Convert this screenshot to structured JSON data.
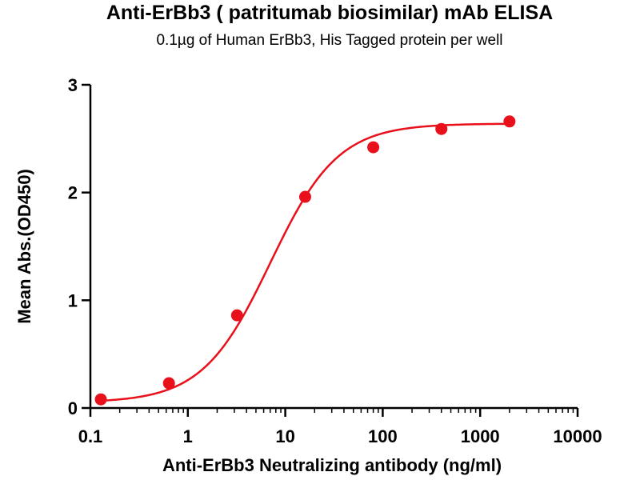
{
  "chart_data": {
    "type": "scatter",
    "title": "Anti-ErBb3 ( patritumab biosimilar) mAb ELISA",
    "subtitle": "0.1µg of Human ErBb3, His Tagged protein per well",
    "xlabel": "Anti-ErBb3 Neutralizing antibody (ng/ml)",
    "ylabel": "Mean Abs.(OD450)",
    "x_scale": "log",
    "xlim": [
      0.1,
      10000
    ],
    "ylim": [
      0,
      3
    ],
    "x_ticks": [
      {
        "value": 0.1,
        "label": "0.1"
      },
      {
        "value": 1,
        "label": "1"
      },
      {
        "value": 10,
        "label": "10"
      },
      {
        "value": 100,
        "label": "100"
      },
      {
        "value": 1000,
        "label": "1000"
      },
      {
        "value": 10000,
        "label": "10000"
      }
    ],
    "y_ticks": [
      {
        "value": 0,
        "label": "0"
      },
      {
        "value": 1,
        "label": "1"
      },
      {
        "value": 2,
        "label": "2"
      },
      {
        "value": 3,
        "label": "3"
      }
    ],
    "series": [
      {
        "x": [
          0.128,
          0.64,
          3.2,
          16,
          80,
          400,
          2000
        ],
        "y": [
          0.08,
          0.23,
          0.86,
          1.96,
          2.42,
          2.59,
          2.66
        ],
        "color": "#e8101a",
        "marker": "circle",
        "fit": "sigmoidal 4PL"
      }
    ],
    "grid": false,
    "legend": "none"
  }
}
